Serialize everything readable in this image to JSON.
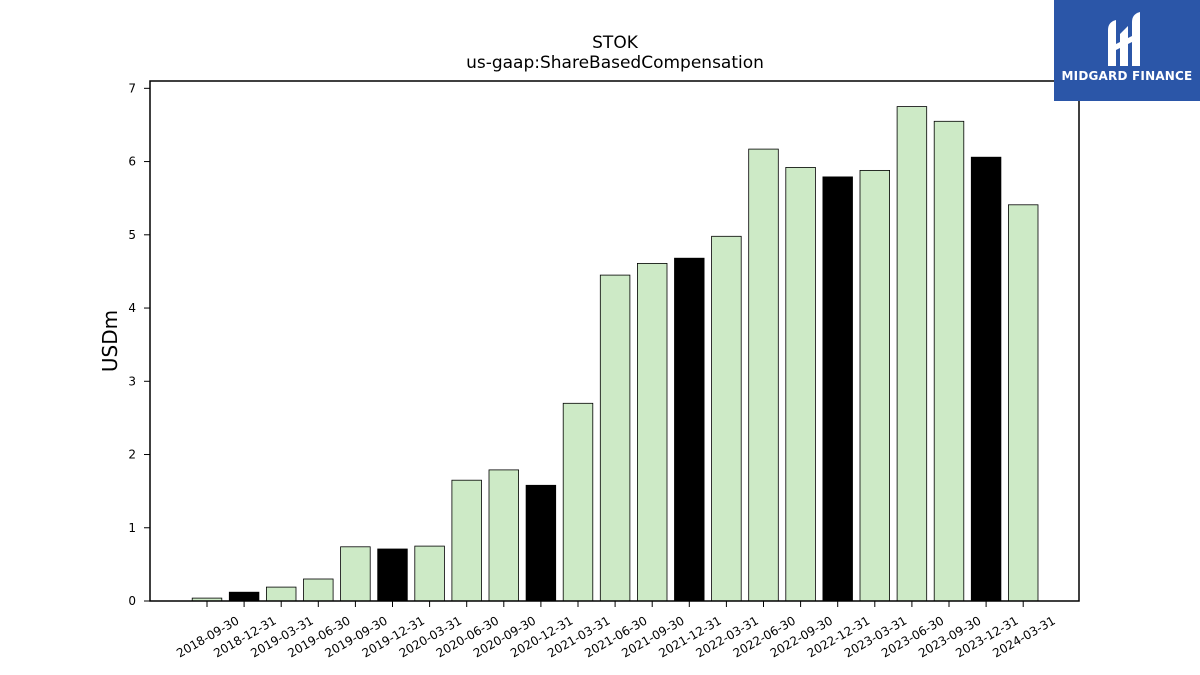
{
  "chart_data": {
    "type": "bar",
    "title": "STOK",
    "subtitle": "us-gaap:ShareBasedCompensation",
    "xlabel": "",
    "ylabel": "USDm",
    "ylim": [
      0,
      7.1
    ],
    "yticks": [
      0,
      1,
      2,
      3,
      4,
      5,
      6,
      7
    ],
    "grid": false,
    "categories": [
      "2018-09-30",
      "2018-12-31",
      "2019-03-31",
      "2019-06-30",
      "2019-09-30",
      "2019-12-31",
      "2020-03-31",
      "2020-06-30",
      "2020-09-30",
      "2020-12-31",
      "2021-03-31",
      "2021-06-30",
      "2021-09-30",
      "2021-12-31",
      "2022-03-31",
      "2022-06-30",
      "2022-09-30",
      "2022-12-31",
      "2023-03-31",
      "2023-06-30",
      "2023-09-30",
      "2023-12-31",
      "2024-03-31"
    ],
    "values": [
      0.04,
      0.12,
      0.19,
      0.3,
      0.74,
      0.71,
      0.75,
      1.65,
      1.79,
      1.58,
      2.7,
      4.45,
      4.61,
      4.68,
      4.98,
      6.17,
      5.92,
      5.79,
      5.88,
      6.75,
      6.55,
      6.06,
      5.41
    ],
    "colors": {
      "quarter": "#cdeac6",
      "year_end": "#000000",
      "edge": "#000000"
    },
    "highlight_categories": [
      "2018-12-31",
      "2019-12-31",
      "2020-12-31",
      "2021-12-31",
      "2022-12-31",
      "2023-12-31"
    ]
  },
  "branding": {
    "logo_text": "MIDGARD FINANCE",
    "logo_icon": "midgard-logo-icon",
    "logo_color": "#2b56a8"
  }
}
